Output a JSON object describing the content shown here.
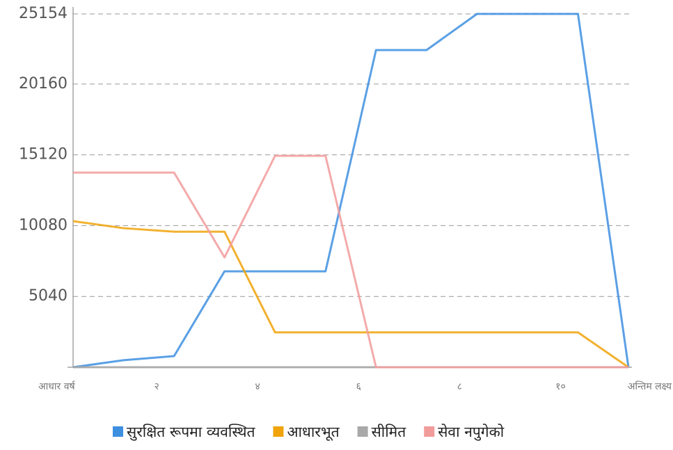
{
  "chart_data": {
    "type": "line",
    "categories": [
      "आधार वर्ष",
      null,
      "२",
      null,
      "४",
      null,
      "६",
      null,
      "८",
      null,
      "१०",
      "अन्तिम लक्ष्य"
    ],
    "series": [
      {
        "name": "सुरक्षित रूपमा व्यवस्थित",
        "color": "#3d8fe0",
        "values": [
          0,
          500,
          790,
          6830,
          6830,
          6830,
          22580,
          22580,
          25154,
          25154,
          25154,
          0
        ]
      },
      {
        "name": "आधारभूत",
        "color": "#f0a30a",
        "values": [
          10400,
          9900,
          9650,
          9650,
          2480,
          2480,
          2480,
          2480,
          2480,
          2480,
          2480,
          0
        ]
      },
      {
        "name": "सीमित",
        "color": "#a9a9a9",
        "values": [
          0,
          0,
          0,
          0,
          0,
          0,
          0,
          0,
          0,
          0,
          0,
          0
        ]
      },
      {
        "name": "सेवा नपुगेको",
        "color": "#f29b9b",
        "values": [
          13860,
          13860,
          13860,
          7820,
          15050,
          15050,
          0,
          0,
          0,
          0,
          0,
          0
        ]
      }
    ],
    "ylim": [
      0,
      25154
    ],
    "yticks": [
      5040,
      10080,
      15120,
      20160,
      25154
    ],
    "grid": true,
    "legend": "bottom"
  }
}
